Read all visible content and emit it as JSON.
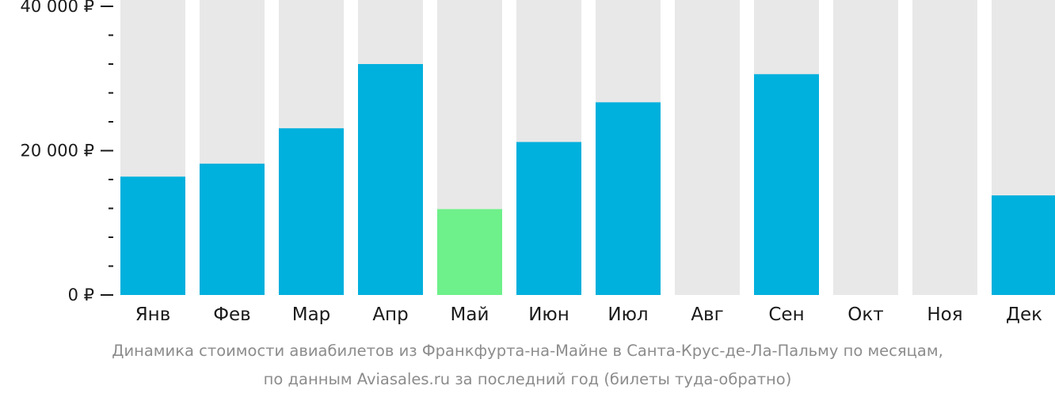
{
  "chart_data": {
    "type": "bar",
    "categories": [
      "Янв",
      "Фев",
      "Мар",
      "Апр",
      "Май",
      "Июн",
      "Июл",
      "Авг",
      "Сен",
      "Окт",
      "Ноя",
      "Дек"
    ],
    "values": [
      16400,
      18200,
      23100,
      32000,
      11900,
      21200,
      26700,
      null,
      30600,
      null,
      null,
      13800
    ],
    "highlight_category": "Май",
    "ylim": [
      0,
      40000
    ],
    "y_major_ticks": [
      0,
      20000,
      40000
    ],
    "y_tick_labels": [
      "0 ₽",
      "20 000 ₽",
      "40 000 ₽"
    ],
    "y_minor_step": 4000,
    "title": "",
    "xlabel": "",
    "ylabel": "",
    "grid": false,
    "legend": "none",
    "colors": {
      "bar": "#00b0dd",
      "highlight": "#6ef08a",
      "background_bar": "#e8e8e8",
      "axis": "#1a1a1a",
      "caption": "#8c8c8c"
    }
  },
  "caption": {
    "line1": "Динамика стоимости авиабилетов из Франкфурта-на-Майне в Санта-Крус-де-Ла-Пальму по месяцам,",
    "line2": "по данным Aviasales.ru за последний год (билеты туда-обратно)"
  }
}
